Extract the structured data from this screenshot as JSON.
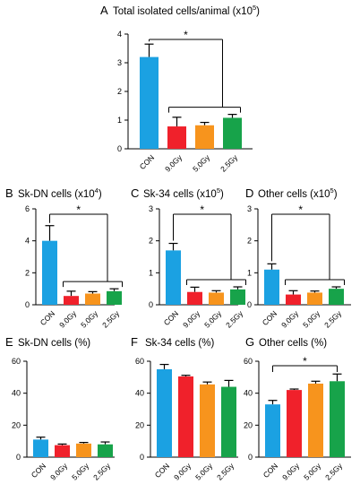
{
  "colors": {
    "CON": "#1ba1e2",
    "9.0Gy": "#f0212b",
    "5.0Gy": "#f7941d",
    "2.5Gy": "#17a34a"
  },
  "chart_data": [
    {
      "id": "A",
      "type": "bar",
      "letter": "A",
      "title": "Total isolated cells/animal (x10",
      "title_sup": "5",
      "title_end": ")",
      "categories": [
        "CON",
        "9.0Gy",
        "5.0Gy",
        "2.5Gy"
      ],
      "values": [
        3.2,
        0.78,
        0.82,
        1.08
      ],
      "errors": [
        0.45,
        0.32,
        0.1,
        0.12
      ],
      "ylim": [
        0,
        4
      ],
      "yticks": [
        "0",
        "1",
        "2",
        "3",
        "4"
      ],
      "sig": {
        "label": "*",
        "type": "group",
        "from": 0,
        "to": [
          1,
          3
        ]
      }
    },
    {
      "id": "B",
      "type": "bar",
      "letter": "B",
      "title": "Sk-DN cells (x10",
      "title_sup": "4",
      "title_end": ")",
      "categories": [
        "CON",
        "9.0Gy",
        "5.0Gy",
        "2.5Gy"
      ],
      "values": [
        4.0,
        0.55,
        0.7,
        0.85
      ],
      "errors": [
        0.95,
        0.3,
        0.12,
        0.15
      ],
      "ylim": [
        0,
        6
      ],
      "yticks": [
        "0",
        "2",
        "4",
        "6"
      ],
      "sig": {
        "label": "*",
        "type": "group",
        "from": 0,
        "to": [
          1,
          3
        ]
      }
    },
    {
      "id": "C",
      "type": "bar",
      "letter": "C",
      "title": "Sk-34 cells (x10",
      "title_sup": "5",
      "title_end": ")",
      "categories": [
        "CON",
        "9.0Gy",
        "5.0Gy",
        "2.5Gy"
      ],
      "values": [
        1.7,
        0.4,
        0.38,
        0.48
      ],
      "errors": [
        0.22,
        0.15,
        0.06,
        0.08
      ],
      "ylim": [
        0,
        3
      ],
      "yticks": [
        "0",
        "1",
        "2",
        "3"
      ],
      "sig": {
        "label": "*",
        "type": "group",
        "from": 0,
        "to": [
          1,
          3
        ]
      }
    },
    {
      "id": "D",
      "type": "bar",
      "letter": "D",
      "title": "Other cells (x10",
      "title_sup": "5",
      "title_end": ")",
      "categories": [
        "CON",
        "9.0Gy",
        "5.0Gy",
        "2.5Gy"
      ],
      "values": [
        1.1,
        0.32,
        0.38,
        0.5
      ],
      "errors": [
        0.18,
        0.12,
        0.05,
        0.06
      ],
      "ylim": [
        0,
        3
      ],
      "yticks": [
        "0",
        "1",
        "2",
        "3"
      ],
      "sig": {
        "label": "*",
        "type": "group",
        "from": 0,
        "to": [
          1,
          3
        ]
      }
    },
    {
      "id": "E",
      "type": "bar",
      "letter": "E",
      "title": "Sk-DN cells (%)",
      "title_sup": "",
      "title_end": "",
      "categories": [
        "CON",
        "9.0Gy",
        "5.0Gy",
        "2.5Gy"
      ],
      "values": [
        11,
        7.5,
        8.5,
        8.0
      ],
      "errors": [
        1.5,
        0.7,
        0.7,
        1.5
      ],
      "ylim": [
        0,
        60
      ],
      "yticks": [
        "0",
        "20",
        "40",
        "60"
      ],
      "sig": null
    },
    {
      "id": "F",
      "type": "bar",
      "letter": "F",
      "title": "Sk-34 cells (%)",
      "title_sup": "",
      "title_end": "",
      "categories": [
        "CON",
        "9.0Gy",
        "5.0Gy",
        "2.5Gy"
      ],
      "values": [
        55,
        50.5,
        45.5,
        44
      ],
      "errors": [
        3,
        0.7,
        1.5,
        4
      ],
      "ylim": [
        0,
        60
      ],
      "yticks": [
        "0",
        "20",
        "40",
        "60"
      ],
      "sig": null
    },
    {
      "id": "G",
      "type": "bar",
      "letter": "G",
      "title": "Other cells (%)",
      "title_sup": "",
      "title_end": "",
      "categories": [
        "CON",
        "9.0Gy",
        "5.0Gy",
        "2.5Gy"
      ],
      "values": [
        33,
        42,
        46,
        47.5
      ],
      "errors": [
        2.5,
        0.6,
        1.5,
        4.5
      ],
      "ylim": [
        0,
        60
      ],
      "yticks": [
        "0",
        "20",
        "40",
        "60"
      ],
      "sig": {
        "label": "*",
        "type": "pair",
        "from": 0,
        "to": [
          3,
          3
        ]
      }
    }
  ]
}
